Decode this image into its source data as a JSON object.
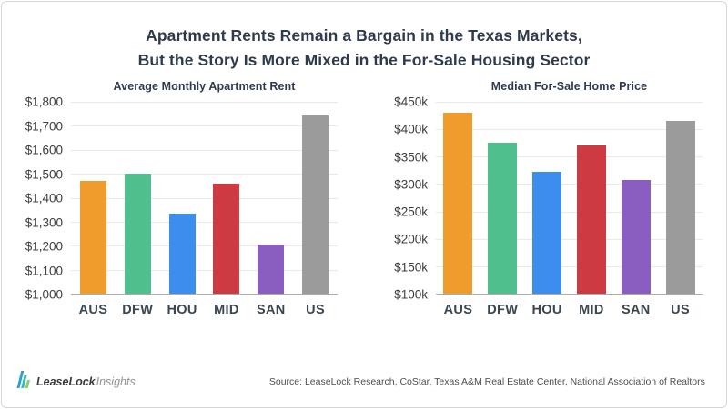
{
  "title": {
    "line1": "Apartment Rents Remain a Bargain in the Texas Markets,",
    "line2": "But the Story Is More Mixed in the For-Sale Housing Sector"
  },
  "colors": {
    "title_text": "#2F3B4C",
    "tick_label": "#3d3d3d",
    "gridline": "#e9e9e9",
    "axis_line": "#ababab",
    "bar_orange": "#F09C2D",
    "bar_green": "#4FBF8D",
    "bar_blue": "#3D8DEF",
    "bar_red": "#CD3A42",
    "bar_purple": "#8A5EC1",
    "bar_gray": "#9B9B9B"
  },
  "chart_data": [
    {
      "type": "bar",
      "title": "Average Monthly Apartment Rent",
      "categories": [
        "AUS",
        "DFW",
        "HOU",
        "MID",
        "SAN",
        "US"
      ],
      "values": [
        1470,
        1500,
        1335,
        1460,
        1205,
        1745
      ],
      "bar_colors": [
        "#F09C2D",
        "#4FBF8D",
        "#3D8DEF",
        "#CD3A42",
        "#8A5EC1",
        "#9B9B9B"
      ],
      "ylim": [
        1000,
        1800
      ],
      "ytick_step": 100,
      "ytick_labels": [
        "$1,800",
        "$1,700",
        "$1,600",
        "$1,500",
        "$1,400",
        "$1,300",
        "$1,200",
        "$1,100",
        "$1,000"
      ],
      "grid": true,
      "legend": "none"
    },
    {
      "type": "bar",
      "title": "Median For-Sale Home Price",
      "categories": [
        "AUS",
        "DFW",
        "HOU",
        "MID",
        "SAN",
        "US"
      ],
      "values": [
        430000,
        375000,
        322000,
        370000,
        307000,
        415000
      ],
      "bar_colors": [
        "#F09C2D",
        "#4FBF8D",
        "#3D8DEF",
        "#CD3A42",
        "#8A5EC1",
        "#9B9B9B"
      ],
      "ylim": [
        100000,
        450000
      ],
      "ytick_step": 50000,
      "ytick_labels": [
        "$450k",
        "$400k",
        "$350k",
        "$300k",
        "$250k",
        "$200k",
        "$150k",
        "$100k"
      ],
      "grid": true,
      "legend": "none"
    }
  ],
  "footer": {
    "logo_bold": "LeaseLock",
    "logo_light": "Insights",
    "source": "Source: LeaseLock Research, CoStar, Texas A&M Real Estate Center, National Association of Realtors"
  }
}
